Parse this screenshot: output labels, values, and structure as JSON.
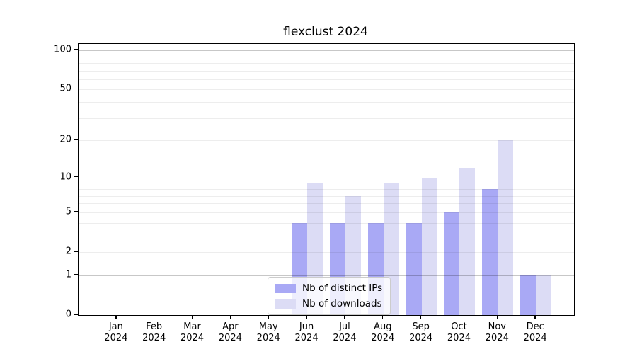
{
  "chart_data": {
    "type": "bar",
    "title": "flexclust 2024",
    "categories": [
      "Jan",
      "Feb",
      "Mar",
      "Apr",
      "May",
      "Jun",
      "Jul",
      "Aug",
      "Sep",
      "Oct",
      "Nov",
      "Dec"
    ],
    "year_label": "2024",
    "series": [
      {
        "name": "Nb of distinct IPs",
        "color_key": "distinct_ips",
        "values": [
          0,
          0,
          0,
          0,
          0,
          4,
          4,
          4,
          4,
          5,
          8,
          1
        ]
      },
      {
        "name": "Nb of downloads",
        "color_key": "downloads",
        "values": [
          0,
          0,
          0,
          0,
          0,
          9,
          7,
          9,
          10,
          12,
          20,
          1
        ]
      }
    ],
    "y_scale": "log1p",
    "y_axis_ticks": [
      0,
      1,
      2,
      5,
      10,
      20,
      50,
      100
    ],
    "y_gridlines_minor": [
      2,
      3,
      4,
      5,
      6,
      7,
      8,
      9,
      20,
      30,
      40,
      50,
      60,
      70,
      80,
      90
    ],
    "y_gridlines_decade": [
      1,
      10,
      100
    ],
    "ylim": [
      0,
      112
    ],
    "grid": true,
    "legend_position": "lower center"
  },
  "colors": {
    "distinct_ips": "#a9a9f5",
    "downloads": "#dcdcf5",
    "grid_minor": "rgba(0,0,0,0.07)",
    "grid_decade": "rgba(0,0,0,0.22)",
    "axis_border": "#000000",
    "legend_border": "#cccccc",
    "legend_bg": "rgba(255,255,255,0.8)"
  }
}
